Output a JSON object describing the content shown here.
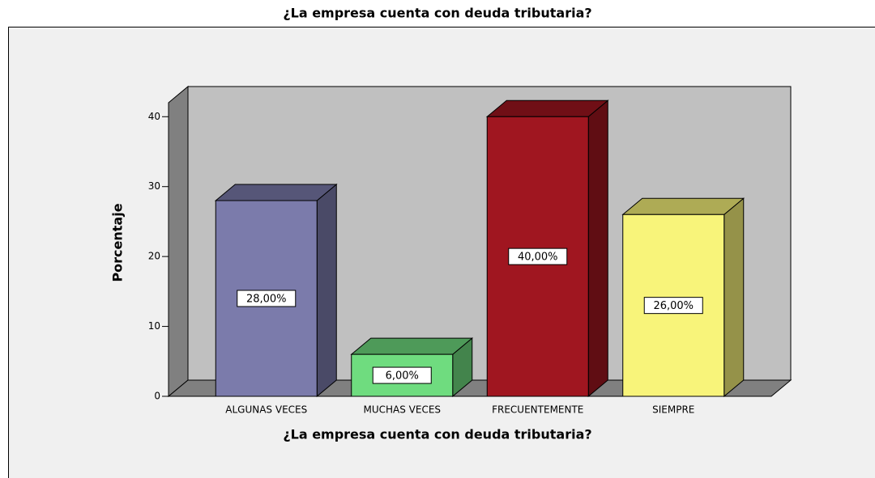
{
  "chart_data": {
    "type": "bar3d",
    "title": "¿La empresa cuenta con deuda tributaria?",
    "x_label": "¿La empresa cuenta con deuda tributaria?",
    "y_label": "Porcentaje",
    "categories": [
      "ALGUNAS VECES",
      "MUCHAS VECES",
      "FRECUENTEMENTE",
      "SIEMPRE"
    ],
    "values": [
      28,
      6,
      40,
      26
    ],
    "value_labels": [
      "28,00%",
      "6,00%",
      "40,00%",
      "26,00%"
    ],
    "colors": [
      "#7b7bab",
      "#6fdc7f",
      "#a01620",
      "#f8f47a"
    ],
    "ylim": [
      0,
      42
    ],
    "yticks": [
      0,
      10,
      20,
      30,
      40
    ]
  }
}
